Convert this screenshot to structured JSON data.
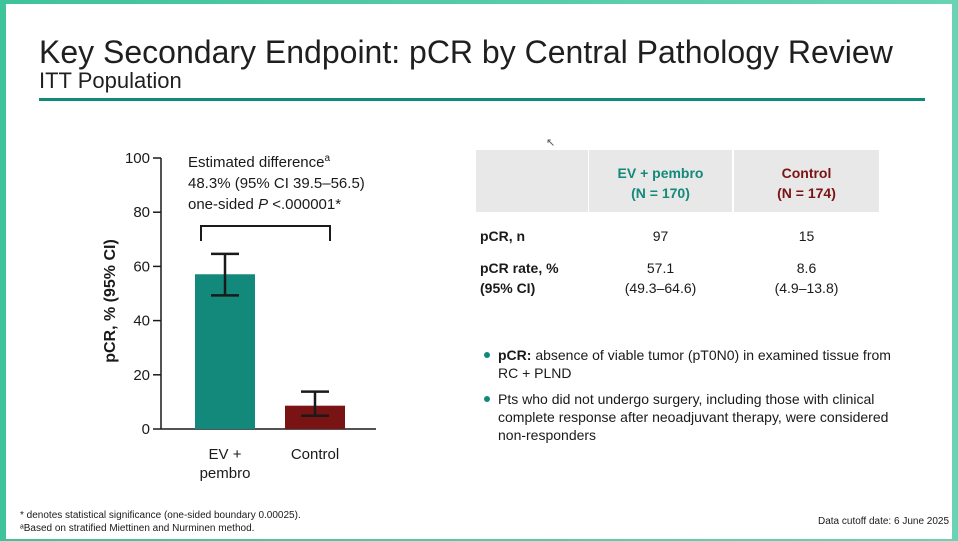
{
  "header": {
    "title": "Key Secondary Endpoint: pCR by Central Pathology Review",
    "subtitle": "ITT Population"
  },
  "chart_data": {
    "type": "bar",
    "categories": [
      "EV +\npembro",
      "Control"
    ],
    "values": [
      57.1,
      8.6
    ],
    "ci_low": [
      49.3,
      4.9
    ],
    "ci_high": [
      64.6,
      13.8
    ],
    "colors": [
      "#12897a",
      "#7a1414"
    ],
    "ylabel": "pCR, % (95% CI)",
    "ylim": [
      0,
      100
    ],
    "yticks": [
      0,
      20,
      40,
      60,
      80,
      100
    ],
    "annotation": {
      "line1": "Estimated difference",
      "line1_sup": "a",
      "line2": "48.3% (95% CI 39.5–56.5)",
      "line3_prefix": "one-sided ",
      "line3_italic": "P",
      "line3_suffix": " <.000001*"
    }
  },
  "table": {
    "headers": [
      {
        "line1": "EV + pembro",
        "line2": "(N = 170)",
        "color": "#12897a"
      },
      {
        "line1": "Control",
        "line2": "(N = 174)",
        "color": "#7a1414"
      }
    ],
    "rows": [
      {
        "label1": "pCR, n",
        "label2": "",
        "values": [
          [
            "97",
            ""
          ],
          [
            "15",
            ""
          ]
        ]
      },
      {
        "label1": "pCR rate, %",
        "label2": "(95% CI)",
        "values": [
          [
            "57.1",
            "(49.3–64.6)"
          ],
          [
            "8.6",
            "(4.9–13.8)"
          ]
        ]
      }
    ]
  },
  "bullets": [
    {
      "bold": "pCR:",
      "text": " absence of viable tumor (pT0N0) in examined tissue from RC + PLND"
    },
    {
      "bold": "",
      "text": "Pts who did not undergo surgery, including those with clinical complete response after neoadjuvant therapy, were considered non-responders"
    }
  ],
  "footnotes": {
    "line1": "* denotes statistical significance (one-sided boundary 0.00025).",
    "line2": "ᵃBased on stratified Miettinen and Nurminen method.",
    "cutoff": "Data cutoff date: 6 June 2025"
  }
}
